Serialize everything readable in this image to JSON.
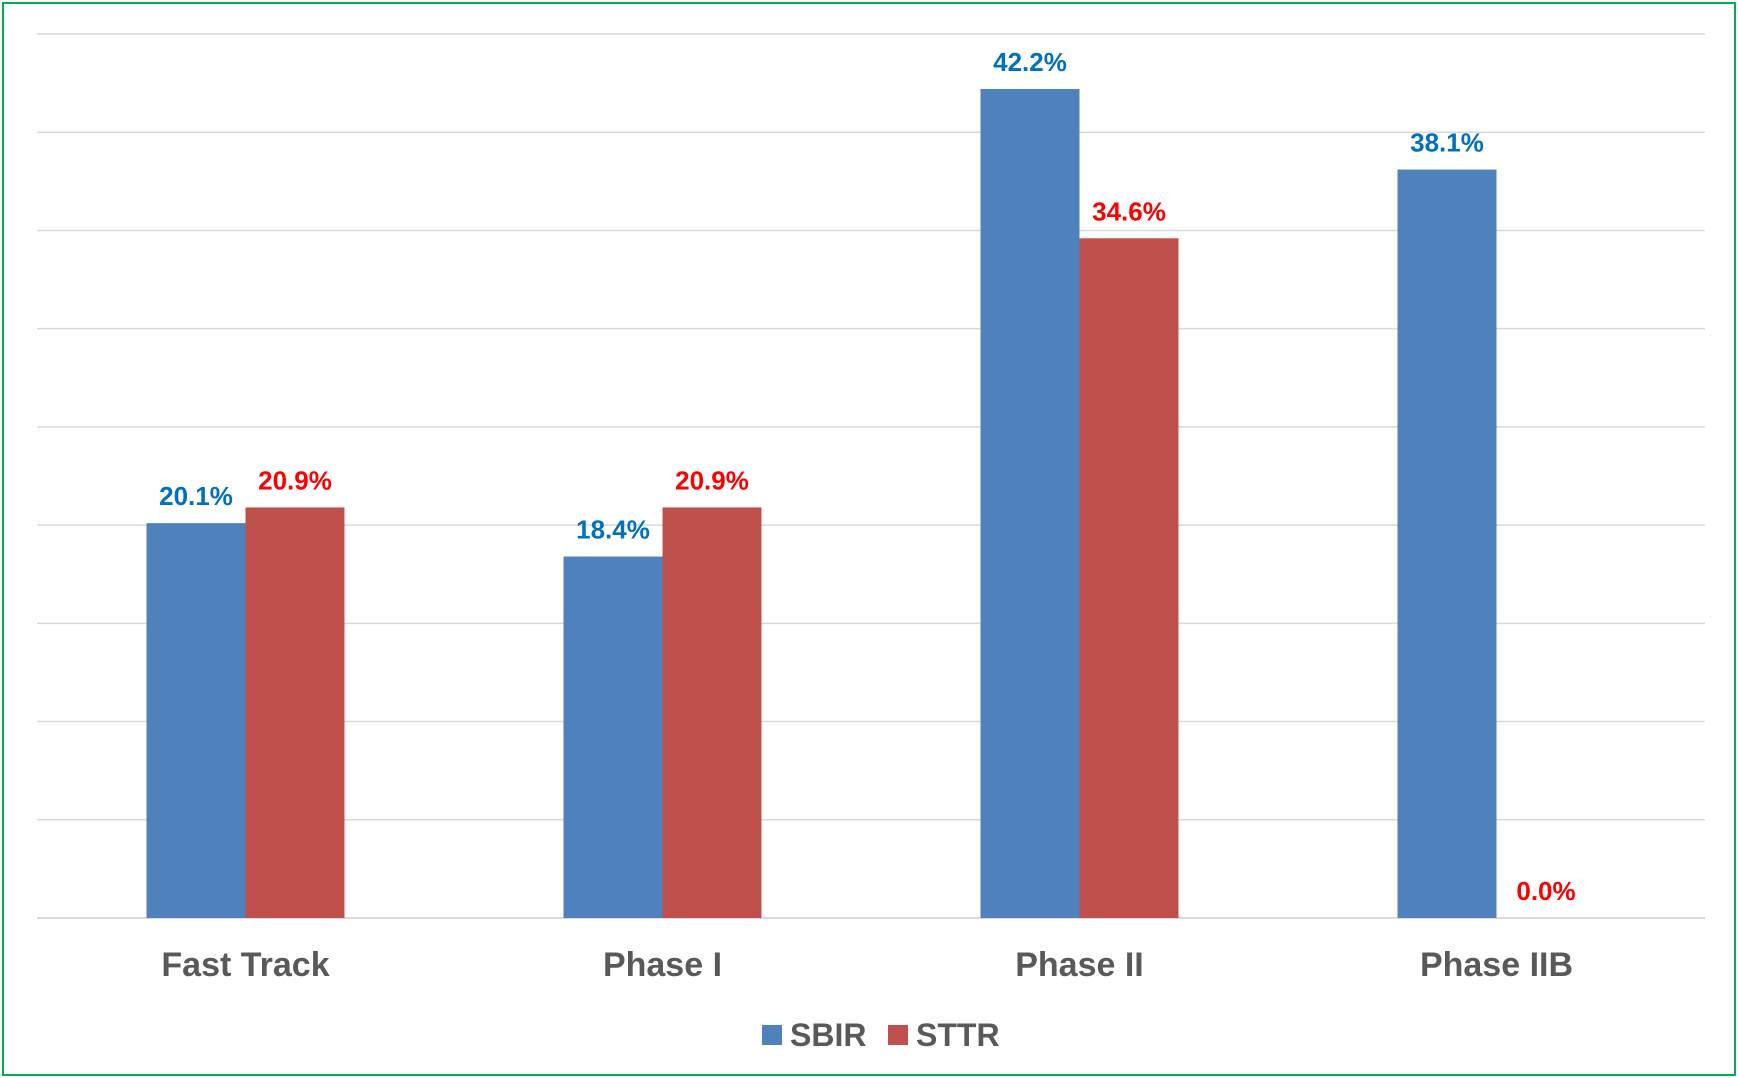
{
  "chart_data": {
    "type": "bar",
    "categories": [
      "Fast Track",
      "Phase I",
      "Phase II",
      "Phase IIB"
    ],
    "series": [
      {
        "name": "SBIR",
        "color": "#4F81BD",
        "label_color": "#0070C0",
        "values": [
          20.1,
          18.4,
          42.2,
          38.1
        ],
        "labels": [
          "20.1%",
          "18.4%",
          "42.2%",
          "38.1%"
        ]
      },
      {
        "name": "STTR",
        "color": "#C0504D",
        "label_color": "#FF0000",
        "values": [
          20.9,
          20.9,
          34.6,
          0.0
        ],
        "labels": [
          "20.9%",
          "20.9%",
          "34.6%",
          "0.0%"
        ]
      }
    ],
    "ylim": [
      0,
      45
    ],
    "grid": true,
    "legend": "bottom",
    "border_color": "#00B050",
    "grid_color": "#D9D9D9"
  }
}
